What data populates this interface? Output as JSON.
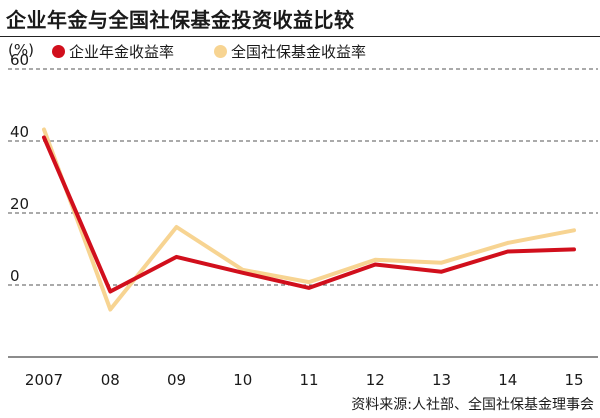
{
  "title": "企业年金与全国社保基金投资收益比较",
  "source": "资料来源:人社部、全国社保基金理事会",
  "colors": {
    "enterprise": "#d10f1c",
    "ssf": "#f7d492",
    "grid": "#555555",
    "axis": "#1a1a1a"
  },
  "chart_data": {
    "type": "line",
    "title": "企业年金与全国社保基金投资收益比较",
    "ylabel": "(%)",
    "xlabel": "",
    "x": [
      "2007",
      "08",
      "09",
      "10",
      "11",
      "12",
      "13",
      "14",
      "15"
    ],
    "ylim": [
      -20,
      60
    ],
    "yticks": [
      0,
      20,
      40,
      60
    ],
    "grid": "horizontal dashed",
    "legend_position": "top",
    "series": [
      {
        "name": "企业年金收益率",
        "color": "#d10f1c",
        "values": [
          41.0,
          -1.8,
          7.8,
          3.4,
          -0.8,
          5.7,
          3.7,
          9.3,
          9.9
        ]
      },
      {
        "name": "全国社保基金收益率",
        "color": "#f7d492",
        "values": [
          43.2,
          -6.8,
          16.1,
          4.2,
          0.8,
          7.0,
          6.2,
          11.7,
          15.2
        ]
      }
    ]
  }
}
